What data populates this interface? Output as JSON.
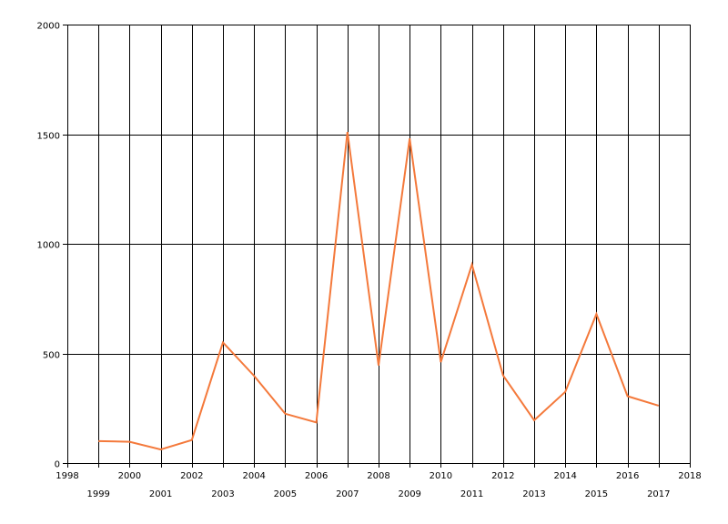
{
  "chart_data": {
    "type": "line",
    "title": "",
    "xlabel": "",
    "ylabel": "",
    "xlim": [
      1998,
      2018
    ],
    "ylim": [
      0,
      2000
    ],
    "grid": true,
    "legend": "none",
    "y_ticks": [
      "0",
      "500",
      "1000",
      "1500",
      "2000"
    ],
    "x_ticks_even": [
      "1998",
      "2000",
      "2002",
      "2004",
      "2006",
      "2008",
      "2010",
      "2012",
      "2014",
      "2016",
      "2018"
    ],
    "x_ticks_odd": [
      "1999",
      "2001",
      "2003",
      "2005",
      "2007",
      "2009",
      "2011",
      "2013",
      "2015",
      "2017"
    ],
    "series": [
      {
        "color": "#f4793b",
        "x": [
          1999,
          2000,
          2001,
          2002,
          2003,
          2004,
          2005,
          2006,
          2007,
          2008,
          2009,
          2010,
          2011,
          2012,
          2013,
          2014,
          2015,
          2016,
          2017
        ],
        "y": [
          100,
          97,
          62,
          105,
          550,
          398,
          225,
          185,
          1510,
          445,
          1480,
          460,
          905,
          400,
          195,
          325,
          680,
          305,
          262
        ]
      }
    ]
  }
}
